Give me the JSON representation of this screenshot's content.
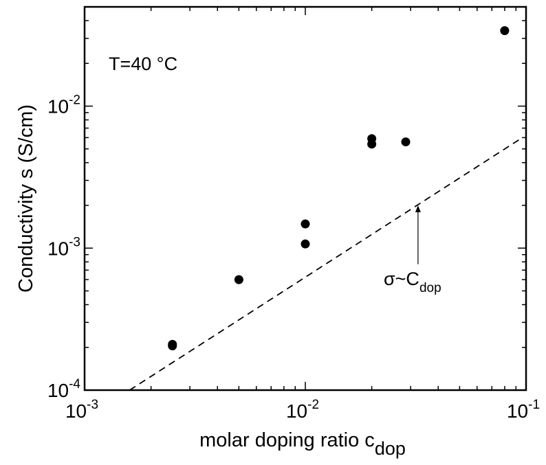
{
  "chart_data": {
    "type": "scatter",
    "x_scale": "log",
    "y_scale": "log",
    "xlim": [
      0.001,
      0.1
    ],
    "ylim": [
      0.0001,
      0.05
    ],
    "xlabel": {
      "main": "molar doping ratio c",
      "sub": "dop"
    },
    "ylabel": "Conductivity  s (S/cm)",
    "x_ticks": [
      {
        "value": 0.001,
        "base": "10",
        "exp": "-3"
      },
      {
        "value": 0.01,
        "base": "10",
        "exp": "-2"
      },
      {
        "value": 0.1,
        "base": "10",
        "exp": "-1"
      }
    ],
    "y_ticks": [
      {
        "value": 0.0001,
        "base": "10",
        "exp": "-4"
      },
      {
        "value": 0.001,
        "base": "10",
        "exp": "-3"
      },
      {
        "value": 0.01,
        "base": "10",
        "exp": "-2"
      }
    ],
    "series": [
      {
        "points": [
          {
            "x": 0.0025,
            "y": 0.00021
          },
          {
            "x": 0.0025,
            "y": 0.000205
          },
          {
            "x": 0.005,
            "y": 0.0006
          },
          {
            "x": 0.01,
            "y": 0.00107
          },
          {
            "x": 0.01,
            "y": 0.00148
          },
          {
            "x": 0.02,
            "y": 0.0054
          },
          {
            "x": 0.02,
            "y": 0.0059
          },
          {
            "x": 0.0285,
            "y": 0.0056
          },
          {
            "x": 0.08,
            "y": 0.034
          }
        ]
      }
    ],
    "reference_line": {
      "style": "dashed",
      "from": {
        "x": 0.0016,
        "y": 0.0001
      },
      "to": {
        "x": 0.093,
        "y": 0.0058
      }
    },
    "annotations": {
      "temperature": "T=40 °C",
      "fit_label": {
        "main": "σ~C",
        "sub": "dop"
      },
      "arrow": {
        "from": {
          "x": 0.0324,
          "y": 0.00077
        },
        "to": {
          "x": 0.0324,
          "y": 0.002
        }
      }
    },
    "grid": false,
    "legend": "none"
  }
}
